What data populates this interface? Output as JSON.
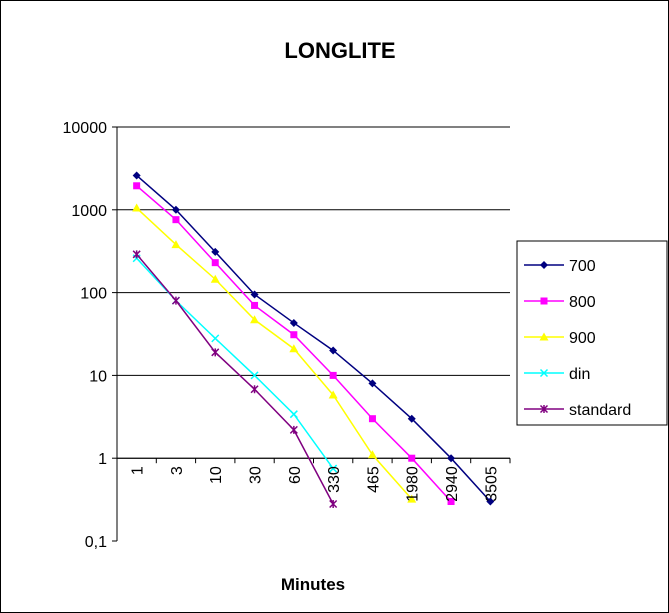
{
  "chart_data": {
    "type": "line",
    "title": "LONGLITE",
    "xlabel": "Minutes",
    "ylabel": "",
    "categories": [
      "1",
      "3",
      "10",
      "30",
      "60",
      "330",
      "465",
      "1980",
      "2940",
      "3505"
    ],
    "y_scale": "log",
    "ylim": [
      0.1,
      10000
    ],
    "y_ticks": [
      "0,1",
      "1",
      "10",
      "100",
      "1000",
      "10000"
    ],
    "y_tick_values": [
      0.1,
      1,
      10,
      100,
      1000,
      10000
    ],
    "grid": true,
    "legend_position": "right",
    "series": [
      {
        "name": "700",
        "color": "#000080",
        "marker": "diamond",
        "values": [
          2600,
          1000,
          310,
          95,
          43,
          20,
          8,
          3,
          1,
          0.3
        ]
      },
      {
        "name": "800",
        "color": "#ff00ff",
        "marker": "square",
        "values": [
          1950,
          760,
          230,
          70,
          31,
          10,
          3,
          1,
          0.3,
          null
        ]
      },
      {
        "name": "900",
        "color": "#ffff00",
        "marker": "triangle",
        "values": [
          1050,
          380,
          145,
          47,
          21,
          5.8,
          1.1,
          0.32,
          null,
          null
        ]
      },
      {
        "name": "din",
        "color": "#00ffff",
        "marker": "x",
        "values": [
          260,
          80,
          28,
          10,
          3.4,
          0.75,
          null,
          null,
          null,
          null
        ]
      },
      {
        "name": "standard",
        "color": "#800080",
        "marker": "star",
        "values": [
          290,
          80,
          19,
          6.8,
          2.2,
          0.28,
          null,
          null,
          null,
          null
        ]
      }
    ]
  }
}
